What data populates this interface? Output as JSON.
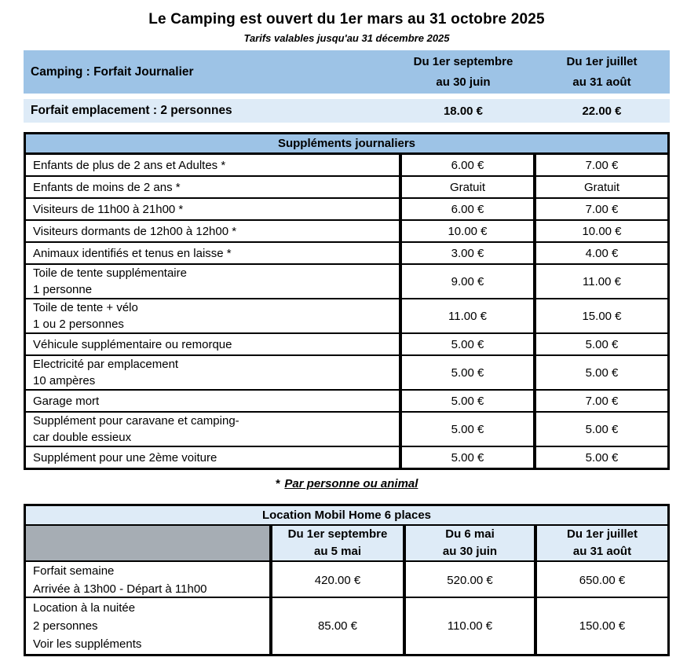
{
  "colors": {
    "header_blue": "#9DC3E6",
    "light_blue": "#DEEBF7",
    "gray_cell": "#A6ADB4"
  },
  "page": {
    "title": "Le Camping est ouvert du 1er mars au 31 octobre 2025",
    "subtitle": "Tarifs valables jusqu'au 31 décembre 2025"
  },
  "daily": {
    "title": "Camping : Forfait Journalier",
    "columns": [
      [
        "Du 1er septembre",
        "au 30 juin"
      ],
      [
        "Du 1er juillet",
        "au 31 août"
      ]
    ],
    "pitch_row": {
      "label": "Forfait emplacement : 2 personnes",
      "prices": [
        "18.00 €",
        "22.00 €"
      ]
    }
  },
  "supplements": {
    "title": "Suppléments journaliers",
    "rows": [
      {
        "label": [
          "Enfants de plus de 2 ans et Adultes *"
        ],
        "p1": "6.00 €",
        "p2": "7.00 €"
      },
      {
        "label": [
          "Enfants de moins de 2 ans *"
        ],
        "p1": "Gratuit",
        "p2": "Gratuit"
      },
      {
        "label": [
          "Visiteurs de 11h00 à 21h00 *"
        ],
        "p1": "6.00 €",
        "p2": "7.00 €"
      },
      {
        "label": [
          "Visiteurs dormants de 12h00 à 12h00 *"
        ],
        "p1": "10.00 €",
        "p2": "10.00 €"
      },
      {
        "label": [
          "Animaux identifiés et tenus en laisse *"
        ],
        "p1": "3.00 €",
        "p2": "4.00 €"
      },
      {
        "label": [
          "Toile de tente supplémentaire",
          "1 personne"
        ],
        "p1": "9.00 €",
        "p2": "11.00 €"
      },
      {
        "label": [
          "Toile de tente + vélo",
          "1 ou 2 personnes"
        ],
        "p1": "11.00 €",
        "p2": "15.00 €"
      },
      {
        "label": [
          "Véhicule supplémentaire ou remorque"
        ],
        "p1": "5.00 €",
        "p2": "5.00 €"
      },
      {
        "label": [
          "Electricité par emplacement",
          "10 ampères"
        ],
        "p1": "5.00 €",
        "p2": "5.00 €"
      },
      {
        "label": [
          "Garage mort"
        ],
        "p1": "5.00 €",
        "p2": "7.00 €"
      },
      {
        "label": [
          "Supplément pour caravane et camping-",
          "car double essieux"
        ],
        "p1": "5.00 €",
        "p2": "5.00 €"
      },
      {
        "label": [
          "Supplément pour une 2ème voiture"
        ],
        "p1": "5.00 €",
        "p2": "5.00 €"
      }
    ],
    "footnote_marker": "*",
    "footnote_text": "Par personne ou animal"
  },
  "mobilhome": {
    "title": "Location Mobil Home 6 places",
    "columns": [
      [
        "Du 1er septembre",
        "au 5 mai"
      ],
      [
        "Du 6 mai",
        "au 30 juin"
      ],
      [
        "Du 1er juillet",
        "au 31 août"
      ]
    ],
    "rows": [
      {
        "label": [
          "Forfait semaine",
          "Arrivée à 13h00 - Départ à 11h00"
        ],
        "prices": [
          "420.00 €",
          "520.00 €",
          "650.00 €"
        ]
      },
      {
        "label": [
          "Location à la nuitée",
          "2 personnes",
          "Voir les suppléments"
        ],
        "prices": [
          "85.00 €",
          "110.00 €",
          "150.00 €"
        ]
      }
    ]
  }
}
